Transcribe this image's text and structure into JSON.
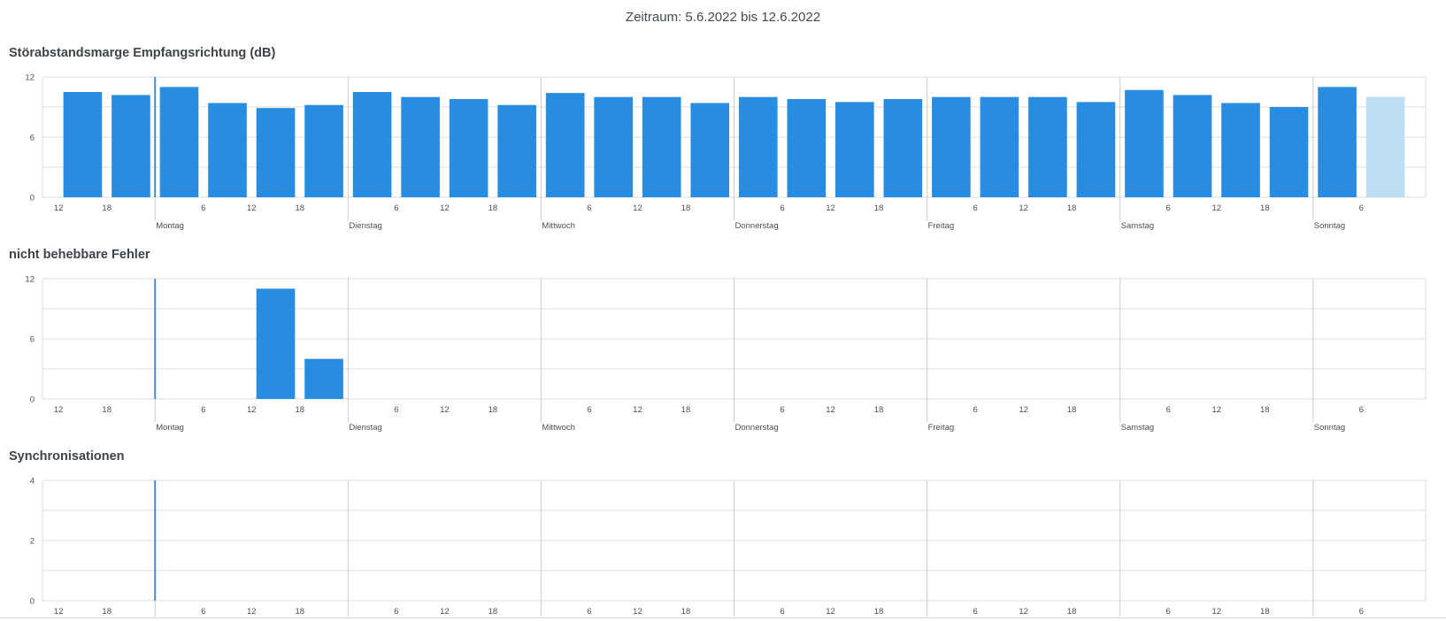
{
  "period_title": "Zeitraum: 5.6.2022 bis 12.6.2022",
  "colors": {
    "bar": "#288de0",
    "bar_current": "#bddef3",
    "now_marker": "#3f8fd0",
    "grid": "#dcdcdc",
    "day_separator": "#cccccc"
  },
  "x_axis": {
    "hour_tick_labels": [
      "12",
      "18",
      "6",
      "12",
      "18",
      "6",
      "12",
      "18",
      "6",
      "12",
      "18",
      "6",
      "12",
      "18",
      "6",
      "12",
      "18",
      "6",
      "12",
      "18",
      "6"
    ],
    "day_labels": [
      "Montag",
      "Dienstag",
      "Mittwoch",
      "Donnerstag",
      "Freitag",
      "Samstag",
      "Sonntag"
    ]
  },
  "chart_data": [
    {
      "type": "bar",
      "title": "Störabstandsmarge Empfangsrichtung (dB)",
      "x": [
        "2022-06-05T12:00",
        "2022-06-05T18:00",
        "2022-06-06T00:00",
        "2022-06-06T06:00",
        "2022-06-06T12:00",
        "2022-06-06T18:00",
        "2022-06-07T00:00",
        "2022-06-07T06:00",
        "2022-06-07T12:00",
        "2022-06-07T18:00",
        "2022-06-08T00:00",
        "2022-06-08T06:00",
        "2022-06-08T12:00",
        "2022-06-08T18:00",
        "2022-06-09T00:00",
        "2022-06-09T06:00",
        "2022-06-09T12:00",
        "2022-06-09T18:00",
        "2022-06-10T00:00",
        "2022-06-10T06:00",
        "2022-06-10T12:00",
        "2022-06-10T18:00",
        "2022-06-11T00:00",
        "2022-06-11T06:00",
        "2022-06-11T12:00",
        "2022-06-11T18:00",
        "2022-06-12T00:00",
        "2022-06-12T06:00"
      ],
      "values": [
        10.5,
        10.2,
        11.0,
        9.4,
        8.9,
        9.2,
        10.5,
        10.0,
        9.8,
        9.2,
        10.4,
        10.0,
        10.0,
        9.4,
        10.0,
        9.8,
        9.5,
        9.8,
        10.0,
        10.0,
        10.0,
        9.5,
        10.7,
        10.2,
        9.4,
        9.0,
        11.0,
        10.0
      ],
      "highlight_last": true,
      "ylim": [
        0,
        12
      ],
      "yticks": [
        "0",
        "6",
        "12"
      ],
      "grid": true
    },
    {
      "type": "bar",
      "title": "nicht behebbare Fehler",
      "x": [
        "2022-06-05T12:00",
        "2022-06-05T18:00",
        "2022-06-06T00:00",
        "2022-06-06T06:00",
        "2022-06-06T12:00",
        "2022-06-06T18:00",
        "2022-06-07T00:00",
        "2022-06-07T06:00",
        "2022-06-07T12:00",
        "2022-06-07T18:00",
        "2022-06-08T00:00",
        "2022-06-08T06:00",
        "2022-06-08T12:00",
        "2022-06-08T18:00",
        "2022-06-09T00:00",
        "2022-06-09T06:00",
        "2022-06-09T12:00",
        "2022-06-09T18:00",
        "2022-06-10T00:00",
        "2022-06-10T06:00",
        "2022-06-10T12:00",
        "2022-06-10T18:00",
        "2022-06-11T00:00",
        "2022-06-11T06:00",
        "2022-06-11T12:00",
        "2022-06-11T18:00",
        "2022-06-12T00:00",
        "2022-06-12T06:00"
      ],
      "values": [
        0,
        0,
        0,
        0,
        11,
        4,
        0,
        0,
        0,
        0,
        0,
        0,
        0,
        0,
        0,
        0,
        0,
        0,
        0,
        0,
        0,
        0,
        0,
        0,
        0,
        0,
        0,
        0
      ],
      "highlight_last": false,
      "ylim": [
        0,
        12
      ],
      "yticks": [
        "0",
        "6",
        "12"
      ],
      "grid": true
    },
    {
      "type": "bar",
      "title": "Synchronisationen",
      "x": [
        "2022-06-05T12:00",
        "2022-06-05T18:00",
        "2022-06-06T00:00",
        "2022-06-06T06:00",
        "2022-06-06T12:00",
        "2022-06-06T18:00",
        "2022-06-07T00:00",
        "2022-06-07T06:00",
        "2022-06-07T12:00",
        "2022-06-07T18:00",
        "2022-06-08T00:00",
        "2022-06-08T06:00",
        "2022-06-08T12:00",
        "2022-06-08T18:00",
        "2022-06-09T00:00",
        "2022-06-09T06:00",
        "2022-06-09T12:00",
        "2022-06-09T18:00",
        "2022-06-10T00:00",
        "2022-06-10T06:00",
        "2022-06-10T12:00",
        "2022-06-10T18:00",
        "2022-06-11T00:00",
        "2022-06-11T06:00",
        "2022-06-11T12:00",
        "2022-06-11T18:00",
        "2022-06-12T00:00",
        "2022-06-12T06:00"
      ],
      "values": [
        0,
        0,
        0,
        0,
        0,
        0,
        0,
        0,
        0,
        0,
        0,
        0,
        0,
        0,
        0,
        0,
        0,
        0,
        0,
        0,
        0,
        0,
        0,
        0,
        0,
        0,
        0,
        0
      ],
      "highlight_last": false,
      "ylim": [
        0,
        4
      ],
      "yticks": [
        "0",
        "2",
        "4"
      ],
      "grid": true,
      "show_day_labels": false
    }
  ]
}
